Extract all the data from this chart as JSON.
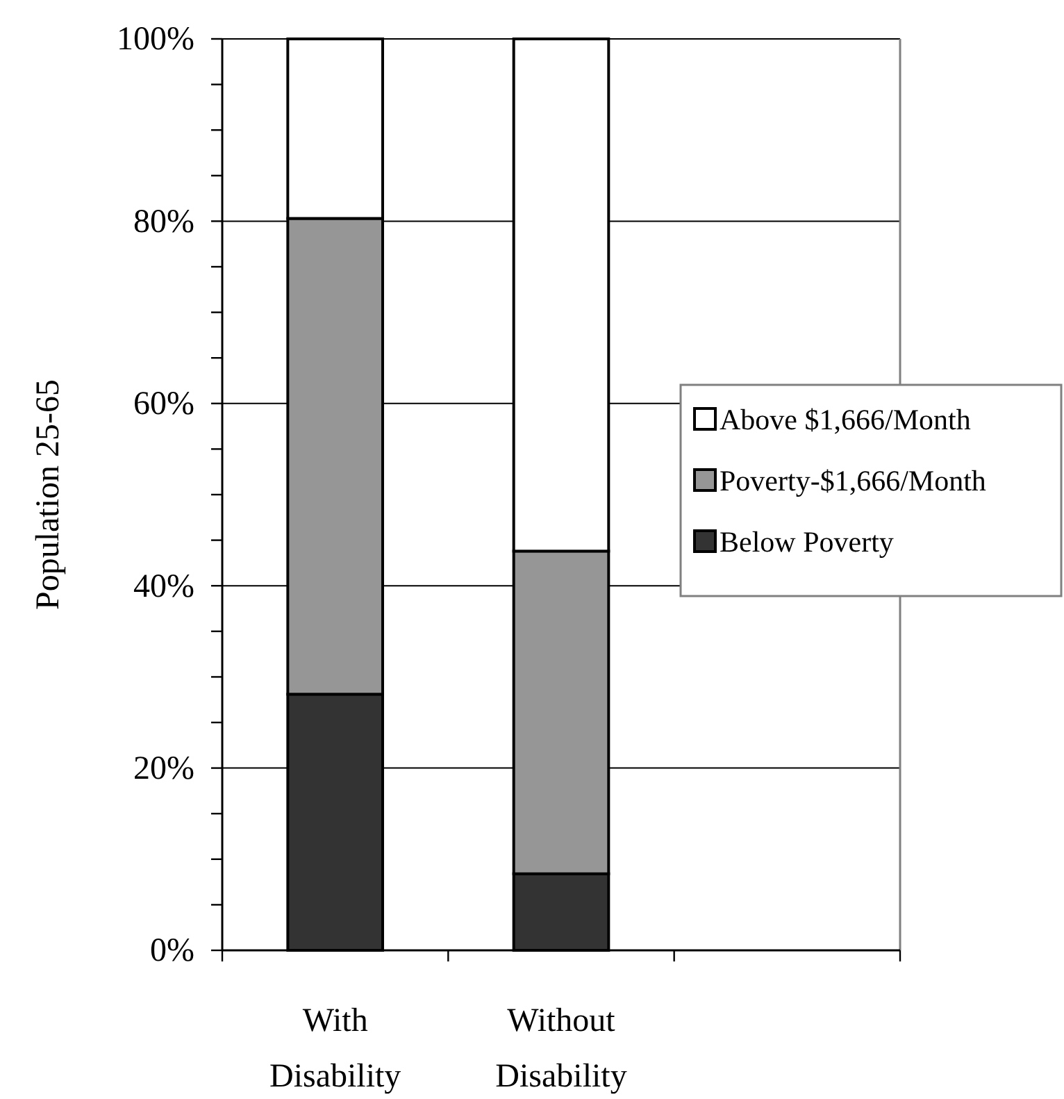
{
  "chart_data": {
    "type": "bar",
    "stacked": true,
    "ylabel": "Population 25-65",
    "categories": [
      "With Disability",
      "Without Disability",
      null
    ],
    "series": [
      {
        "name": "Below Poverty",
        "color": "#333333",
        "values": [
          28.1,
          8.4,
          null
        ]
      },
      {
        "name": "Poverty-$1,666/Month",
        "color": "#969696",
        "values": [
          52.2,
          35.4,
          null
        ]
      },
      {
        "name": "Above $1,666/Month",
        "color": "#ffffff",
        "values": [
          19.7,
          56.2,
          null
        ]
      }
    ],
    "ylim": [
      0,
      100
    ],
    "yticks": [
      {
        "value": 0,
        "label": "0%"
      },
      {
        "value": 5,
        "label": null
      },
      {
        "value": 10,
        "label": null
      },
      {
        "value": 15,
        "label": null
      },
      {
        "value": 20,
        "label": "20%"
      },
      {
        "value": 25,
        "label": null
      },
      {
        "value": 30,
        "label": null
      },
      {
        "value": 35,
        "label": null
      },
      {
        "value": 40,
        "label": "40%"
      },
      {
        "value": 45,
        "label": null
      },
      {
        "value": 50,
        "label": null
      },
      {
        "value": 55,
        "label": null
      },
      {
        "value": 60,
        "label": "60%"
      },
      {
        "value": 65,
        "label": null
      },
      {
        "value": 70,
        "label": null
      },
      {
        "value": 75,
        "label": null
      },
      {
        "value": 80,
        "label": "80%"
      },
      {
        "value": 85,
        "label": null
      },
      {
        "value": 90,
        "label": null
      },
      {
        "value": 95,
        "label": null
      },
      {
        "value": 100,
        "label": "100%"
      }
    ],
    "grid": "y",
    "legend": "right"
  }
}
